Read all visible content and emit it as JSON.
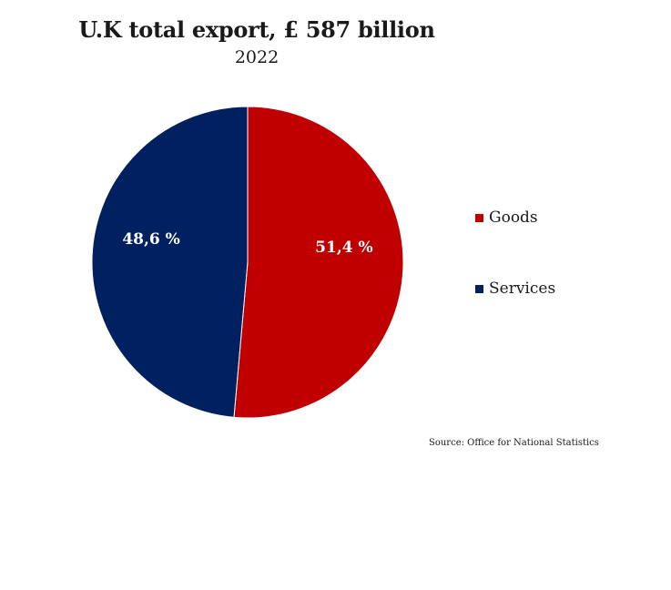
{
  "chart_data": {
    "type": "pie",
    "title": "U.K total export, £ 587 billion",
    "subtitle": "2022",
    "slices": [
      {
        "name": "Goods",
        "value": 51.4,
        "label": "51,4 %",
        "color": "#c00000"
      },
      {
        "name": "Services",
        "value": 48.6,
        "label": "48,6 %",
        "color": "#002060"
      }
    ],
    "legend_position": "right",
    "source": "Source: Office for National Statistics"
  }
}
